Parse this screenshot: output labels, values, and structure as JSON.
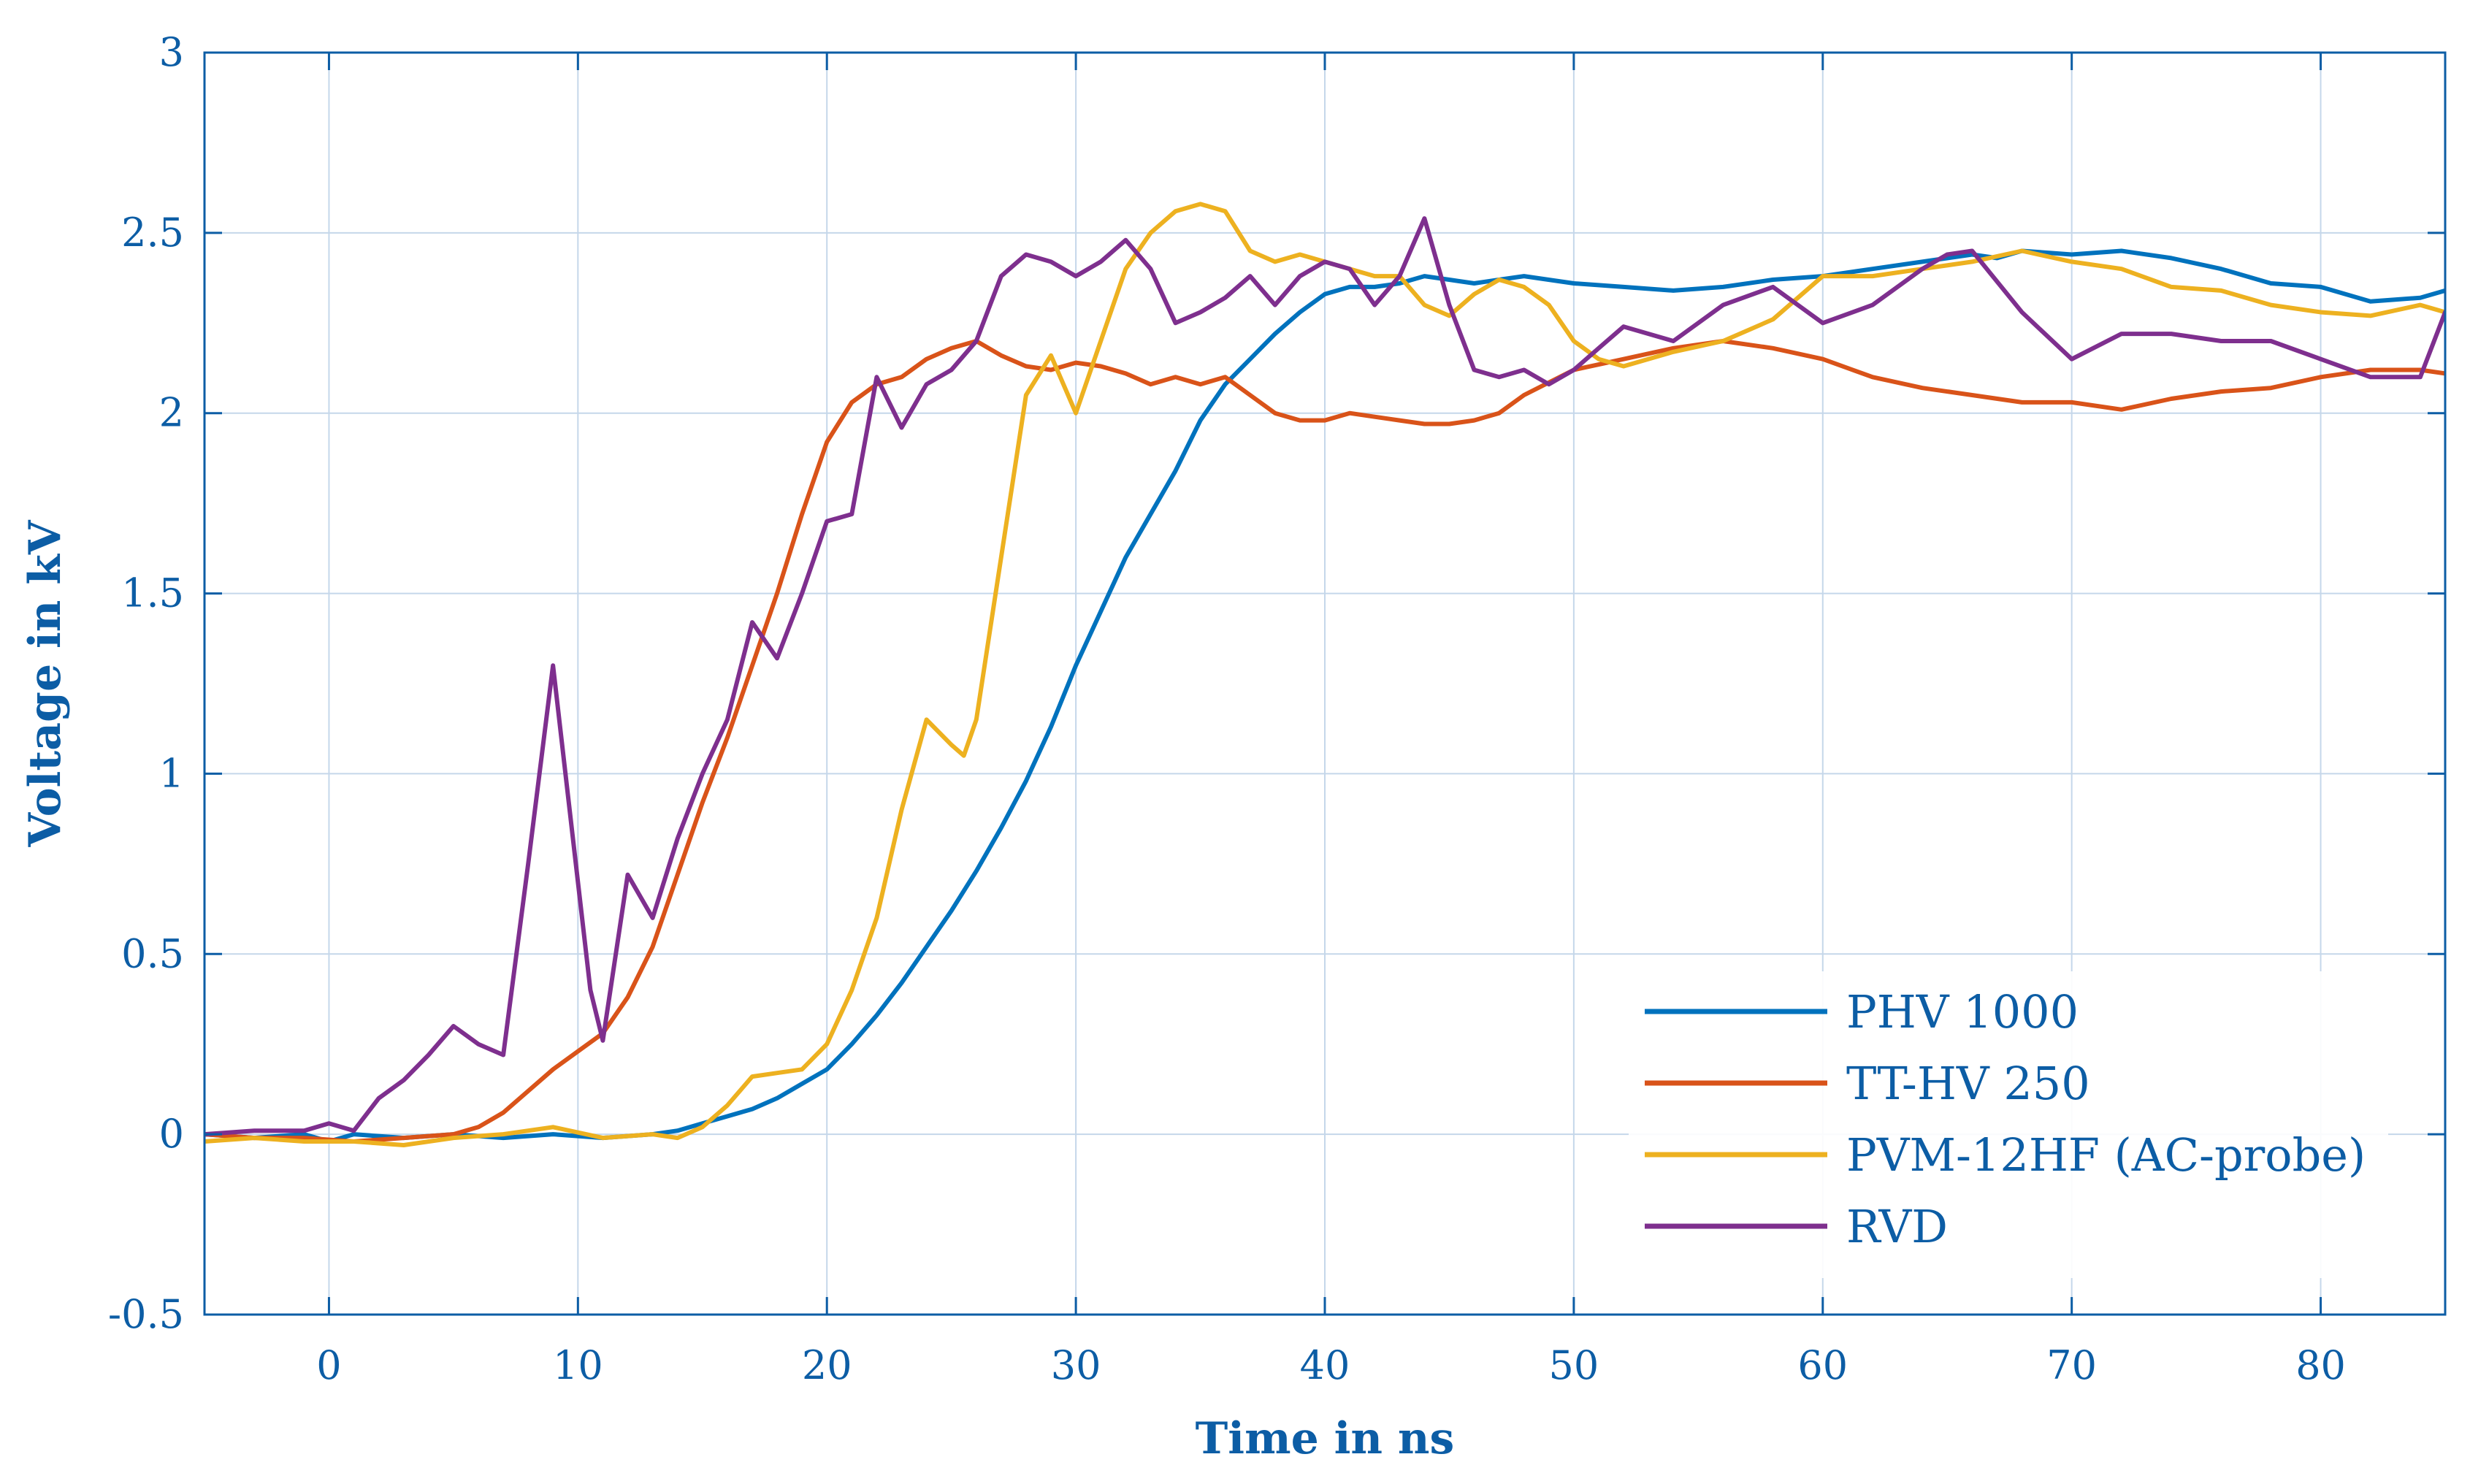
{
  "chart_data": {
    "type": "line",
    "title": "",
    "xlabel": "Time in ns",
    "ylabel": "Voltage in kV",
    "xlim": [
      -5,
      85
    ],
    "ylim": [
      -0.5,
      3
    ],
    "xticks": [
      0,
      10,
      20,
      30,
      40,
      50,
      60,
      70,
      80
    ],
    "xtick_labels": [
      "0",
      "10",
      "20",
      "30",
      "40",
      "50",
      "60",
      "70",
      "80"
    ],
    "yticks": [
      -0.5,
      0,
      0.5,
      1,
      1.5,
      2,
      2.5,
      3
    ],
    "ytick_labels": [
      "-0.5",
      "0",
      "0.5",
      "1",
      "1.5",
      "2",
      "2.5",
      "3"
    ],
    "grid": true,
    "legend_position": "bottom-right",
    "colors": {
      "axis": "#0c5da5",
      "grid": "#c5d7ea",
      "background": "#ffffff"
    },
    "series": [
      {
        "name": "PHV 1000",
        "color": "#0072bd",
        "x": [
          -5,
          -3,
          -1,
          0,
          1,
          3,
          5,
          7,
          9,
          11,
          13,
          14,
          15,
          16,
          17,
          18,
          19,
          20,
          21,
          22,
          23,
          24,
          25,
          26,
          27,
          28,
          29,
          30,
          31,
          32,
          33,
          34,
          35,
          36,
          37,
          38,
          39,
          40,
          41,
          42,
          43,
          44,
          45,
          46,
          47,
          48,
          50,
          52,
          54,
          56,
          58,
          60,
          62,
          64,
          66,
          67,
          68,
          70,
          72,
          74,
          76,
          78,
          80,
          82,
          84,
          85
        ],
        "y": [
          0,
          -0.01,
          0,
          -0.02,
          0,
          -0.01,
          0,
          -0.01,
          0,
          -0.01,
          0,
          0.01,
          0.03,
          0.05,
          0.07,
          0.1,
          0.14,
          0.18,
          0.25,
          0.33,
          0.42,
          0.52,
          0.62,
          0.73,
          0.85,
          0.98,
          1.13,
          1.3,
          1.45,
          1.6,
          1.72,
          1.84,
          1.98,
          2.08,
          2.15,
          2.22,
          2.28,
          2.33,
          2.35,
          2.35,
          2.36,
          2.38,
          2.37,
          2.36,
          2.37,
          2.38,
          2.36,
          2.35,
          2.34,
          2.35,
          2.37,
          2.38,
          2.4,
          2.42,
          2.44,
          2.43,
          2.45,
          2.44,
          2.45,
          2.43,
          2.4,
          2.36,
          2.35,
          2.31,
          2.32,
          2.34
        ]
      },
      {
        "name": "TT-HV 250",
        "color": "#d95319",
        "x": [
          -5,
          -3,
          -1,
          1,
          3,
          5,
          6,
          7,
          8,
          9,
          10,
          11,
          12,
          13,
          14,
          15,
          16,
          17,
          18,
          19,
          20,
          21,
          22,
          23,
          24,
          25,
          26,
          27,
          28,
          29,
          30,
          31,
          32,
          33,
          34,
          35,
          36,
          37,
          38,
          39,
          40,
          41,
          42,
          43,
          44,
          45,
          46,
          47,
          48,
          50,
          52,
          54,
          56,
          58,
          60,
          62,
          64,
          66,
          68,
          70,
          72,
          74,
          76,
          78,
          80,
          82,
          84,
          85
        ],
        "y": [
          0,
          -0.01,
          -0.01,
          -0.02,
          -0.01,
          0,
          0.02,
          0.06,
          0.12,
          0.18,
          0.23,
          0.28,
          0.38,
          0.52,
          0.72,
          0.92,
          1.1,
          1.3,
          1.5,
          1.72,
          1.92,
          2.03,
          2.08,
          2.1,
          2.15,
          2.18,
          2.2,
          2.16,
          2.13,
          2.12,
          2.14,
          2.13,
          2.11,
          2.08,
          2.1,
          2.08,
          2.1,
          2.05,
          2.0,
          1.98,
          1.98,
          2.0,
          1.99,
          1.98,
          1.97,
          1.97,
          1.98,
          2.0,
          2.05,
          2.12,
          2.15,
          2.18,
          2.2,
          2.18,
          2.15,
          2.1,
          2.07,
          2.05,
          2.03,
          2.03,
          2.01,
          2.04,
          2.06,
          2.07,
          2.1,
          2.12,
          2.12,
          2.11
        ]
      },
      {
        "name": "PVM-12HF (AC-probe)",
        "color": "#edb120",
        "x": [
          -5,
          -3,
          -1,
          1,
          3,
          5,
          7,
          9,
          11,
          13,
          14,
          15,
          16,
          17,
          18,
          19,
          20,
          21,
          22,
          23,
          24,
          25,
          25.5,
          26,
          27,
          28,
          29,
          30,
          31,
          32,
          33,
          34,
          35,
          36,
          37,
          38,
          39,
          40,
          41,
          42,
          43,
          44,
          45,
          46,
          47,
          48,
          49,
          50,
          51,
          52,
          54,
          56,
          58,
          60,
          62,
          64,
          66,
          68,
          70,
          72,
          74,
          76,
          78,
          80,
          82,
          84,
          85
        ],
        "y": [
          -0.02,
          -0.01,
          -0.02,
          -0.02,
          -0.03,
          -0.01,
          0,
          0.02,
          -0.01,
          0,
          -0.01,
          0.02,
          0.08,
          0.16,
          0.17,
          0.18,
          0.25,
          0.4,
          0.6,
          0.9,
          1.15,
          1.08,
          1.05,
          1.15,
          1.6,
          2.05,
          2.16,
          2.0,
          2.2,
          2.4,
          2.5,
          2.56,
          2.58,
          2.56,
          2.45,
          2.42,
          2.44,
          2.42,
          2.4,
          2.38,
          2.38,
          2.3,
          2.27,
          2.33,
          2.37,
          2.35,
          2.3,
          2.2,
          2.15,
          2.13,
          2.17,
          2.2,
          2.26,
          2.38,
          2.38,
          2.4,
          2.42,
          2.45,
          2.42,
          2.4,
          2.35,
          2.34,
          2.3,
          2.28,
          2.27,
          2.3,
          2.28
        ]
      },
      {
        "name": "RVD",
        "color": "#7e2f8e",
        "x": [
          -5,
          -3,
          -1,
          0,
          1,
          2,
          3,
          4,
          5,
          6,
          7,
          8,
          9,
          10,
          10.5,
          11,
          12,
          13,
          14,
          15,
          16,
          17,
          18,
          19,
          20,
          21,
          22,
          23,
          24,
          25,
          26,
          27,
          28,
          29,
          30,
          31,
          32,
          33,
          34,
          35,
          36,
          37,
          38,
          39,
          40,
          41,
          42,
          43,
          44,
          45,
          46,
          47,
          48,
          49,
          50,
          51,
          52,
          54,
          56,
          58,
          60,
          62,
          64,
          65,
          66,
          68,
          70,
          72,
          74,
          76,
          78,
          80,
          82,
          84,
          85
        ],
        "y": [
          0,
          0.01,
          0.01,
          0.03,
          0.01,
          0.1,
          0.15,
          0.22,
          0.3,
          0.25,
          0.22,
          0.75,
          1.3,
          0.7,
          0.4,
          0.26,
          0.72,
          0.6,
          0.82,
          1.0,
          1.15,
          1.42,
          1.32,
          1.5,
          1.7,
          1.72,
          2.1,
          1.96,
          2.08,
          2.12,
          2.2,
          2.38,
          2.44,
          2.42,
          2.38,
          2.42,
          2.48,
          2.4,
          2.25,
          2.28,
          2.32,
          2.38,
          2.3,
          2.38,
          2.42,
          2.4,
          2.3,
          2.38,
          2.54,
          2.3,
          2.12,
          2.1,
          2.12,
          2.08,
          2.12,
          2.18,
          2.24,
          2.2,
          2.3,
          2.35,
          2.25,
          2.3,
          2.4,
          2.44,
          2.45,
          2.28,
          2.15,
          2.22,
          2.22,
          2.2,
          2.2,
          2.15,
          2.1,
          2.1,
          2.28
        ]
      }
    ]
  }
}
